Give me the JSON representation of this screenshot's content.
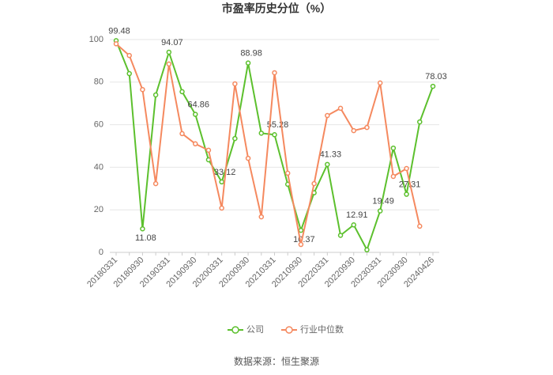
{
  "chart_data": {
    "type": "line",
    "title": "市盈率历史分位（%）",
    "categories": [
      "20180331",
      null,
      "20180930",
      null,
      "20190331",
      null,
      "20190930",
      null,
      "20200331",
      null,
      "20200930",
      null,
      "20210331",
      null,
      "20210930",
      null,
      "20220331",
      null,
      "20220930",
      null,
      "20230331",
      null,
      "20230930",
      null,
      "20240426"
    ],
    "series": [
      {
        "name": "公司",
        "color": "#5cc02d",
        "values": [
          99.48,
          84,
          11.08,
          74,
          94.07,
          75.5,
          64.86,
          43.5,
          33.12,
          53.5,
          88.98,
          56,
          55.28,
          32,
          10.37,
          28,
          41.33,
          8,
          12.91,
          1.2,
          19.49,
          49,
          27.31,
          61.3,
          78.03
        ]
      },
      {
        "name": "行业中位数",
        "color": "#f5895f",
        "values": [
          98,
          92.5,
          76.5,
          32.3,
          88.5,
          55.8,
          51,
          48,
          20.8,
          79.2,
          44.2,
          16.7,
          84.4,
          37.2,
          3.7,
          32.3,
          64.3,
          67.7,
          57.2,
          58.7,
          79.6,
          35.7,
          39.4,
          12.3,
          null
        ]
      }
    ],
    "ylim": [
      0,
      100
    ],
    "yticks": [
      0,
      20,
      40,
      60,
      80,
      100
    ],
    "grid": true,
    "source": "数据来源：恒生聚源"
  }
}
